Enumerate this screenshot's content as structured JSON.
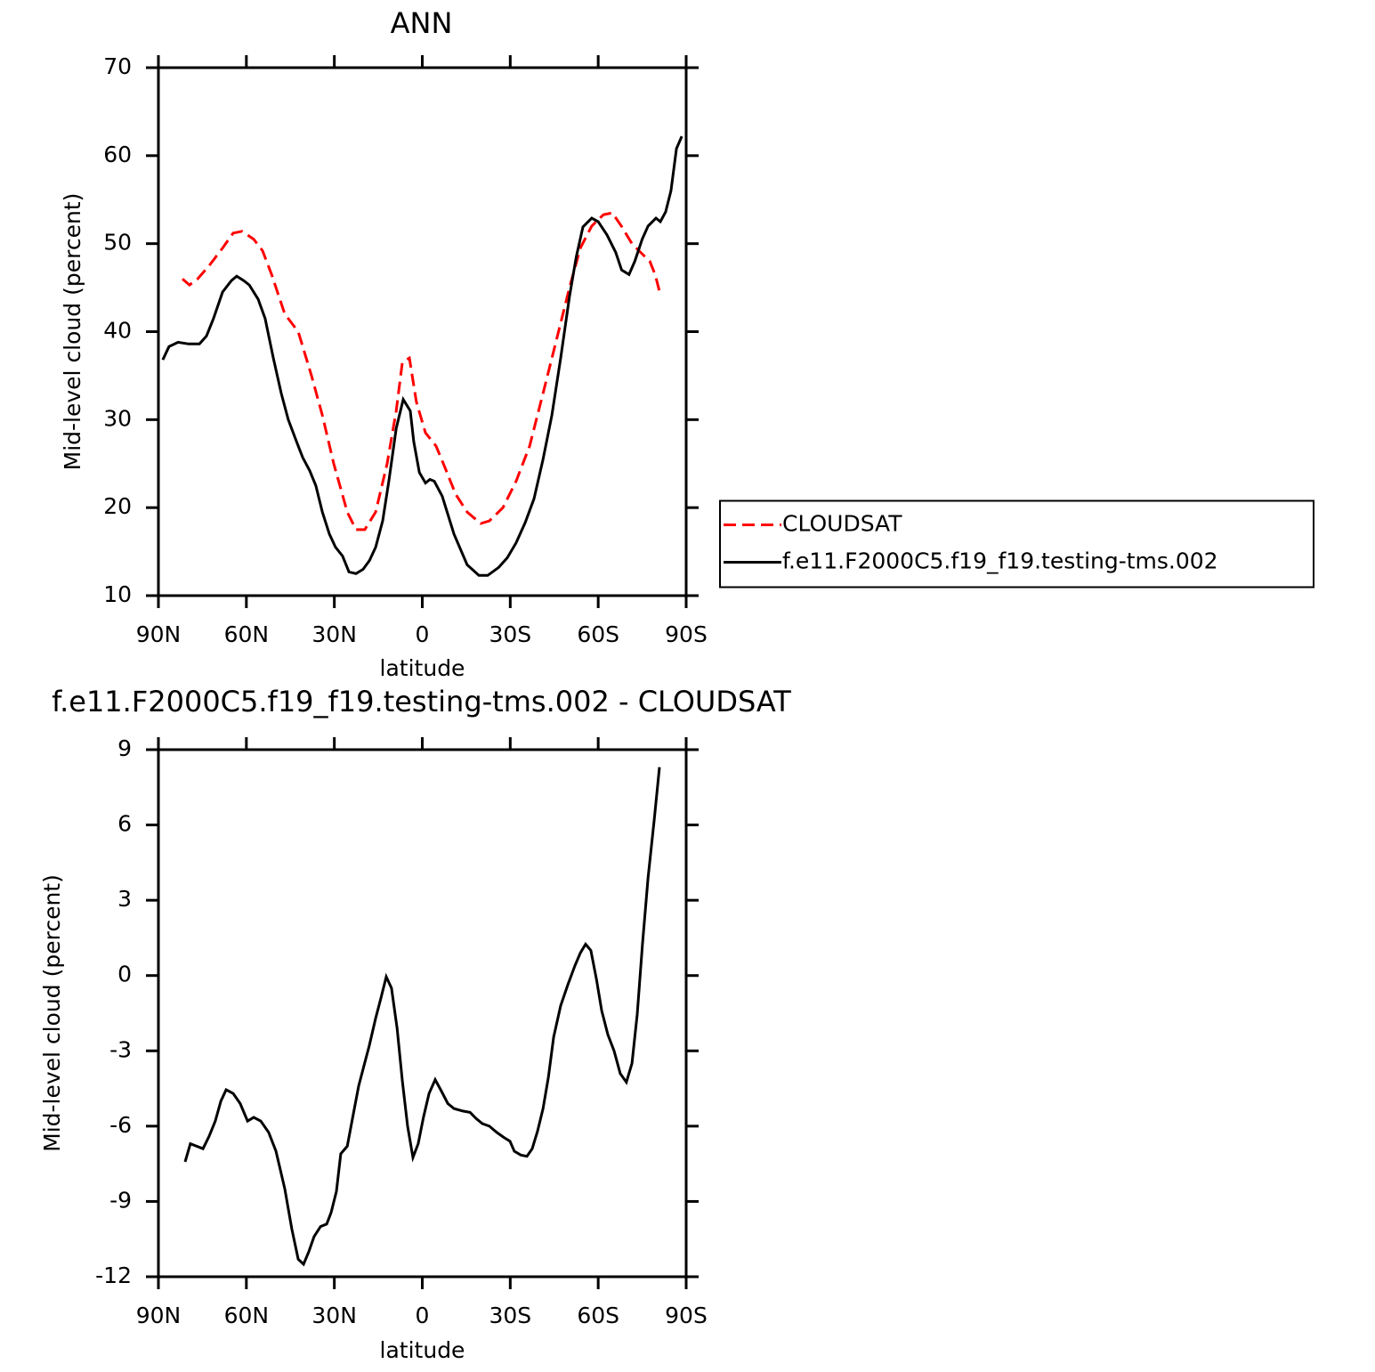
{
  "chart_data": [
    {
      "type": "line",
      "title": "ANN",
      "xlabel": "latitude",
      "ylabel": "Mid-level cloud (percent)",
      "xlim": [
        90,
        -90
      ],
      "xticks": [
        {
          "value": 90,
          "label": "90N"
        },
        {
          "value": 60,
          "label": "60N"
        },
        {
          "value": 30,
          "label": "30N"
        },
        0,
        {
          "value": -30,
          "label": "30S"
        },
        {
          "value": -60,
          "label": "60S"
        },
        {
          "value": -90,
          "label": "90S"
        }
      ],
      "ylim": [
        10,
        70
      ],
      "yticks": [
        10,
        20,
        30,
        40,
        50,
        60,
        70
      ],
      "legend": "right",
      "series": [
        {
          "name": "CLOUDSAT",
          "color": "#ff0000",
          "linestyle": "dashed",
          "x": [
            81.8,
            79.4,
            76.6,
            72.7,
            68.1,
            64.5,
            61.5,
            57.5,
            54.5,
            51.4,
            46.9,
            42.3,
            37.8,
            34.1,
            30.2,
            25.6,
            22.6,
            19.6,
            15.9,
            12,
            8.9,
            6.8,
            4.4,
            2,
            -1.1,
            -4.7,
            -7.8,
            -11.4,
            -15.3,
            -19.9,
            -22.9,
            -27.5,
            -32,
            -36.6,
            -41.2,
            -45.7,
            -50.2,
            -53.9,
            -57.8,
            -61.8,
            -64.8,
            -67.9,
            -71.5,
            -75.1,
            -77.6,
            -79.4,
            -81.2
          ],
          "values": [
            46,
            45.3,
            46,
            47.5,
            49.5,
            51.2,
            51.4,
            50.5,
            49.2,
            46.5,
            42,
            40,
            35,
            30.5,
            25,
            19.5,
            17.5,
            17.5,
            19.5,
            25,
            31,
            36.5,
            37,
            32,
            28.5,
            27,
            24.5,
            21.5,
            19.5,
            18.2,
            18.5,
            20,
            23,
            27,
            33,
            39,
            45,
            49.5,
            52,
            53.3,
            53.5,
            52,
            50,
            48.8,
            48,
            46.5,
            44.2
          ]
        },
        {
          "name": "f.e11.F2000C5.f19_f19.testing-tms.002",
          "color": "#000000",
          "linestyle": "solid",
          "x": [
            88.5,
            86.4,
            83.3,
            79.7,
            76,
            73.6,
            71.2,
            68.1,
            65.1,
            63.3,
            60.9,
            59,
            56,
            53.6,
            50.8,
            48.1,
            45.7,
            42.9,
            40.8,
            38.4,
            36.3,
            34.1,
            31.7,
            29.6,
            27.2,
            25,
            22.6,
            20.2,
            18,
            15.9,
            13.5,
            11.4,
            8.9,
            6.5,
            4.1,
            2.9,
            1,
            -1.1,
            -2.6,
            -4.1,
            -6.8,
            -10.8,
            -15.3,
            -19.3,
            -22.3,
            -26,
            -29,
            -32,
            -35.1,
            -38.1,
            -41.2,
            -44.2,
            -47.2,
            -50.2,
            -52.5,
            -54.8,
            -57.8,
            -60,
            -63,
            -66,
            -68,
            -70.5,
            -72.5,
            -75,
            -77,
            -79.7,
            -81.2,
            -83,
            -84.8,
            -86.7,
            -88.5
          ],
          "values": [
            36.8,
            38.3,
            38.8,
            38.6,
            38.6,
            39.5,
            41.5,
            44.5,
            45.8,
            46.3,
            45.8,
            45.3,
            43.7,
            41.5,
            37,
            33,
            30,
            27.5,
            25.7,
            24.2,
            22.5,
            19.5,
            17,
            15.5,
            14.5,
            12.7,
            12.5,
            13,
            14,
            15.5,
            18.5,
            23,
            29,
            32.3,
            31,
            27.5,
            24,
            22.8,
            23.2,
            23,
            21.3,
            17,
            13.5,
            12.3,
            12.3,
            13.2,
            14.3,
            16,
            18.3,
            21,
            25.5,
            30.5,
            37,
            44,
            48.5,
            51.9,
            52.9,
            52.5,
            51,
            49,
            47,
            46.5,
            48,
            50.5,
            52,
            52.9,
            52.5,
            53.6,
            56,
            60.8,
            62.2
          ]
        }
      ]
    },
    {
      "type": "line",
      "title": "f.e11.F2000C5.f19_f19.testing-tms.002 - CLOUDSAT",
      "xlabel": "latitude",
      "ylabel": "Mid-level cloud (percent)",
      "xlim": [
        90,
        -90
      ],
      "xticks": [
        {
          "value": 90,
          "label": "90N"
        },
        {
          "value": 60,
          "label": "60N"
        },
        {
          "value": 30,
          "label": "30N"
        },
        0,
        {
          "value": -30,
          "label": "30S"
        },
        {
          "value": -60,
          "label": "60S"
        },
        {
          "value": -90,
          "label": "90S"
        }
      ],
      "ylim": [
        -12,
        9
      ],
      "yticks": [
        -12,
        -9,
        -6,
        -3,
        0,
        3,
        6,
        9
      ],
      "series": [
        {
          "color": "#000000",
          "linestyle": "solid",
          "x": [
            80.9,
            79.1,
            74.8,
            72.7,
            70.6,
            68.7,
            66.9,
            64.5,
            62.1,
            59.6,
            57.5,
            55.1,
            52.4,
            49.9,
            46.9,
            44.5,
            42.3,
            40.5,
            38.7,
            36.9,
            34.7,
            32.6,
            31.1,
            29.3,
            27.8,
            25.6,
            23.5,
            21.7,
            19.9,
            18.1,
            15.9,
            14.1,
            12.3,
            10.5,
            8.6,
            6.8,
            5,
            3.2,
            1.4,
            -0.4,
            -2.3,
            -4.4,
            -6.5,
            -8.7,
            -10.8,
            -13.8,
            -16.3,
            -18.4,
            -20.5,
            -22.9,
            -25.4,
            -27.8,
            -29.9,
            -31.4,
            -33.6,
            -35.7,
            -37.5,
            -39.3,
            -41.2,
            -43,
            -44.8,
            -47.2,
            -49.7,
            -52.1,
            -53.9,
            -55.7,
            -57.5,
            -59.4,
            -61.2,
            -63.3,
            -65.4,
            -67.5,
            -69.6,
            -71.5,
            -73.3,
            -75.1,
            -77,
            -79.1,
            -80.9
          ],
          "values": [
            -7.42,
            -6.7,
            -6.9,
            -6.4,
            -5.8,
            -5,
            -4.55,
            -4.7,
            -5.1,
            -5.8,
            -5.65,
            -5.8,
            -6.25,
            -7,
            -8.5,
            -10.1,
            -11.3,
            -11.5,
            -11,
            -10.4,
            -10,
            -9.9,
            -9.45,
            -8.6,
            -7.1,
            -6.8,
            -5.5,
            -4.4,
            -3.6,
            -2.8,
            -1.7,
            -0.9,
            -0.05,
            -0.5,
            -2.1,
            -4.2,
            -6,
            -7.25,
            -6.7,
            -5.65,
            -4.7,
            -4.15,
            -4.6,
            -5.1,
            -5.3,
            -5.4,
            -5.45,
            -5.7,
            -5.9,
            -6,
            -6.25,
            -6.45,
            -6.6,
            -7,
            -7.15,
            -7.2,
            -6.9,
            -6.2,
            -5.3,
            -4.05,
            -2.45,
            -1.2,
            -0.35,
            0.4,
            0.9,
            1.25,
            1,
            -0.15,
            -1.4,
            -2.35,
            -3,
            -3.9,
            -4.25,
            -3.5,
            -1.55,
            1.25,
            3.9,
            6.2,
            8.3
          ]
        }
      ]
    }
  ]
}
